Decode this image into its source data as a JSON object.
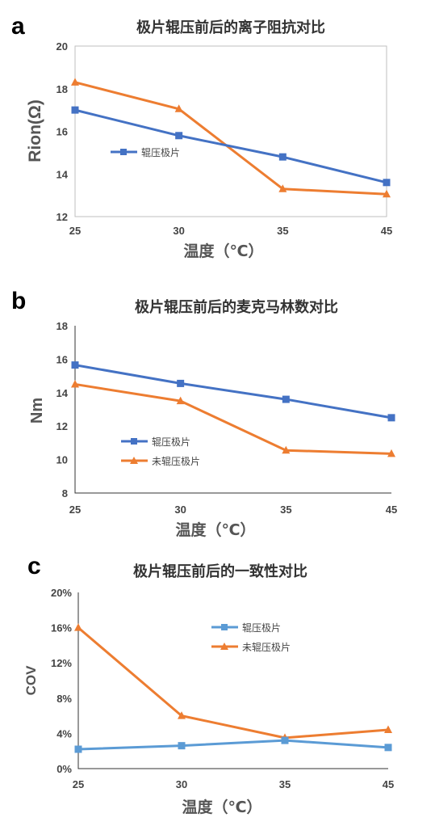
{
  "chart_data": [
    {
      "panel": "a",
      "type": "line",
      "title": "极片辊压前后的离子阻抗对比",
      "xlabel": "温度（℃）",
      "ylabel": "Rion(Ω)",
      "categories": [
        "25",
        "30",
        "35",
        "45"
      ],
      "yticks": [
        "12",
        "14",
        "16",
        "18",
        "20"
      ],
      "ylim": [
        12,
        20
      ],
      "grid": false,
      "legend_position": "middle-left",
      "series": [
        {
          "name": "辊压极片",
          "values": [
            17.0,
            15.8,
            14.8,
            13.6
          ],
          "color": "#4472c4",
          "marker": "square"
        },
        {
          "name": "",
          "values": [
            18.3,
            17.05,
            13.3,
            13.05
          ],
          "color": "#ed7d31",
          "marker": "triangle"
        }
      ]
    },
    {
      "panel": "b",
      "type": "line",
      "title": "极片辊压前后的麦克马林数对比",
      "xlabel": "温度（℃）",
      "ylabel": "Nm",
      "categories": [
        "25",
        "30",
        "35",
        "45"
      ],
      "yticks": [
        "8",
        "10",
        "12",
        "14",
        "16",
        "18"
      ],
      "ylim": [
        8,
        18
      ],
      "grid": false,
      "legend_position": "bottom-left",
      "series": [
        {
          "name": "辊压极片",
          "values": [
            15.65,
            14.55,
            13.6,
            12.5
          ],
          "color": "#4472c4",
          "marker": "square"
        },
        {
          "name": "未辊压极片",
          "values": [
            14.5,
            13.5,
            10.55,
            10.35
          ],
          "color": "#ed7d31",
          "marker": "triangle"
        }
      ]
    },
    {
      "panel": "c",
      "type": "line",
      "title": "极片辊压前后的一致性对比",
      "xlabel": "温度（℃）",
      "ylabel": "COV",
      "categories": [
        "25",
        "30",
        "35",
        "45"
      ],
      "yticks": [
        "0%",
        "4%",
        "8%",
        "12%",
        "16%",
        "20%"
      ],
      "ylim": [
        0,
        20
      ],
      "grid": false,
      "legend_position": "top-right",
      "series": [
        {
          "name": "辊压极片",
          "values": [
            2.2,
            2.6,
            3.2,
            2.4
          ],
          "color": "#5b9bd5",
          "marker": "square"
        },
        {
          "name": "未辊压极片",
          "values": [
            16.0,
            6.0,
            3.5,
            4.4
          ],
          "color": "#ed7d31",
          "marker": "triangle"
        }
      ]
    }
  ]
}
